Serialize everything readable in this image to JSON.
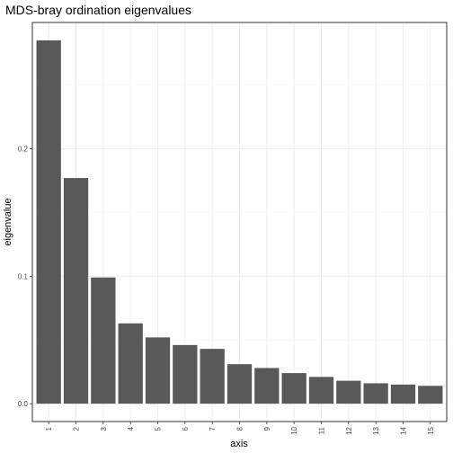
{
  "chart_data": {
    "type": "bar",
    "title": "MDS-bray ordination eigenvalues",
    "xlabel": "axis",
    "ylabel": "eigenvalue",
    "categories": [
      "1",
      "2",
      "3",
      "4",
      "5",
      "6",
      "7",
      "8",
      "9",
      "10",
      "11",
      "12",
      "13",
      "14",
      "15"
    ],
    "values": [
      0.285,
      0.177,
      0.099,
      0.063,
      0.052,
      0.046,
      0.043,
      0.031,
      0.028,
      0.024,
      0.021,
      0.018,
      0.016,
      0.015,
      0.014
    ],
    "yticks": [
      0.0,
      0.1,
      0.2
    ],
    "ytick_labels": [
      "0.0",
      "0.1",
      "0.2"
    ],
    "ylim": [
      -0.014,
      0.299
    ],
    "bar_color": "#595959",
    "grid": true,
    "theme": "bw"
  }
}
